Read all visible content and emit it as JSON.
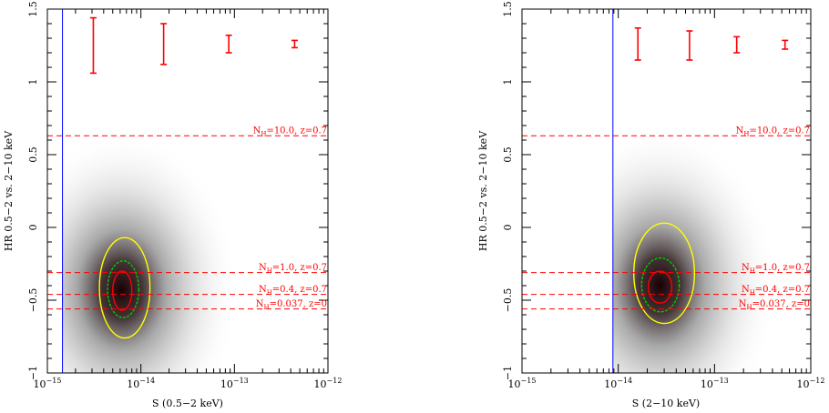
{
  "chart_data": [
    {
      "type": "scatter",
      "title": "",
      "xlabel": "S (0.5−2 keV)",
      "ylabel": "HR 0.5−2 vs. 2−10 keV",
      "xscale": "log",
      "xlim": [
        1e-15,
        1e-12
      ],
      "ylim": [
        -1,
        1.5
      ],
      "x_ticks": [
        {
          "value": 1e-15,
          "base": "10",
          "exp": "−15"
        },
        {
          "value": 1e-14,
          "base": "10",
          "exp": "−14"
        },
        {
          "value": 1e-13,
          "base": "10",
          "exp": "−13"
        },
        {
          "value": 1e-12,
          "base": "10",
          "exp": "−12"
        }
      ],
      "y_ticks": [
        {
          "value": -1,
          "label": "−1"
        },
        {
          "value": -0.5,
          "label": "−0.5"
        },
        {
          "value": 0,
          "label": "0"
        },
        {
          "value": 0.5,
          "label": "0.5"
        },
        {
          "value": 1,
          "label": "1"
        },
        {
          "value": 1.5,
          "label": "1.5"
        }
      ],
      "flux_limit": 1.45e-15,
      "density_peak": {
        "x": 6.2e-15,
        "y": -0.43
      },
      "density_cutoff_y": null,
      "contours": [
        {
          "color": "#ffff00",
          "xmin": 3.6e-15,
          "xmax": 1.25e-14,
          "ymin": -0.76,
          "ymax": -0.07
        },
        {
          "color": "#00cc00",
          "xmin": 4.4e-15,
          "xmax": 9.5e-15,
          "ymin": -0.62,
          "ymax": -0.23
        },
        {
          "color": "#ff0000",
          "xmin": 5e-15,
          "xmax": 8e-15,
          "ymin": -0.57,
          "ymax": -0.3
        }
      ],
      "models": [
        {
          "hr": 0.63,
          "label_main": "N",
          "label_sub": "H",
          "label_rest": "=10.0, z=0.7"
        },
        {
          "hr": -0.31,
          "label_main": "N",
          "label_sub": "H",
          "label_rest": "=1.0, z=0.7"
        },
        {
          "hr": -0.46,
          "label_main": "N",
          "label_sub": "H",
          "label_rest": "=0.4, z=0.7"
        },
        {
          "hr": -0.56,
          "label_main": "N",
          "label_sub": "H",
          "label_rest": "=0.037, z=0"
        }
      ],
      "error_bars": [
        {
          "x": 3.1e-15,
          "center": 1.25,
          "half": 0.19
        },
        {
          "x": 1.75e-14,
          "center": 1.26,
          "half": 0.14
        },
        {
          "x": 8.7e-14,
          "center": 1.26,
          "half": 0.06
        },
        {
          "x": 4.4e-13,
          "center": 1.26,
          "half": 0.025
        }
      ]
    },
    {
      "type": "scatter",
      "title": "",
      "xlabel": "S (2−10 keV)",
      "ylabel": "HR 0.5−2 vs. 2−10 keV",
      "xscale": "log",
      "xlim": [
        1e-15,
        1e-12
      ],
      "ylim": [
        -1,
        1.5
      ],
      "x_ticks": [
        {
          "value": 1e-15,
          "base": "10",
          "exp": "−15"
        },
        {
          "value": 1e-14,
          "base": "10",
          "exp": "−14"
        },
        {
          "value": 1e-13,
          "base": "10",
          "exp": "−13"
        },
        {
          "value": 1e-12,
          "base": "10",
          "exp": "−12"
        }
      ],
      "y_ticks": [
        {
          "value": -1,
          "label": "−1"
        },
        {
          "value": -0.5,
          "label": "−0.5"
        },
        {
          "value": 0,
          "label": "0"
        },
        {
          "value": 0.5,
          "label": "0.5"
        },
        {
          "value": 1,
          "label": "1"
        },
        {
          "value": 1.5,
          "label": "1.5"
        }
      ],
      "flux_limit": 8.8e-15,
      "density_peak": {
        "x": 2.7e-14,
        "y": -0.4
      },
      "density_cutoff_y": 1.0,
      "contours": [
        {
          "color": "#ffff00",
          "xmin": 1.45e-14,
          "xmax": 6.2e-14,
          "ymin": -0.66,
          "ymax": 0.03
        },
        {
          "color": "#00cc00",
          "xmin": 1.75e-14,
          "xmax": 4.3e-14,
          "ymin": -0.58,
          "ymax": -0.21
        },
        {
          "color": "#ff0000",
          "xmin": 2.05e-14,
          "xmax": 3.6e-14,
          "ymin": -0.52,
          "ymax": -0.3
        }
      ],
      "models": [
        {
          "hr": 0.63,
          "label_main": "N",
          "label_sub": "H",
          "label_rest": "=10.0, z=0.7"
        },
        {
          "hr": -0.31,
          "label_main": "N",
          "label_sub": "H",
          "label_rest": "=1.0, z=0.7"
        },
        {
          "hr": -0.46,
          "label_main": "N",
          "label_sub": "H",
          "label_rest": "=0.4, z=0.7"
        },
        {
          "hr": -0.56,
          "label_main": "N",
          "label_sub": "H",
          "label_rest": "=0.037, z=0"
        }
      ],
      "error_bars": [
        {
          "x": 1.6e-14,
          "center": 1.26,
          "half": 0.11
        },
        {
          "x": 5.5e-14,
          "center": 1.25,
          "half": 0.1
        },
        {
          "x": 1.7e-13,
          "center": 1.255,
          "half": 0.055
        },
        {
          "x": 5.4e-13,
          "center": 1.255,
          "half": 0.03
        }
      ]
    }
  ],
  "colors": {
    "model_line": "#ff0000",
    "flux_limit_line": "#0000ff",
    "axes": "#000000",
    "density_dark": "#1a0004"
  }
}
